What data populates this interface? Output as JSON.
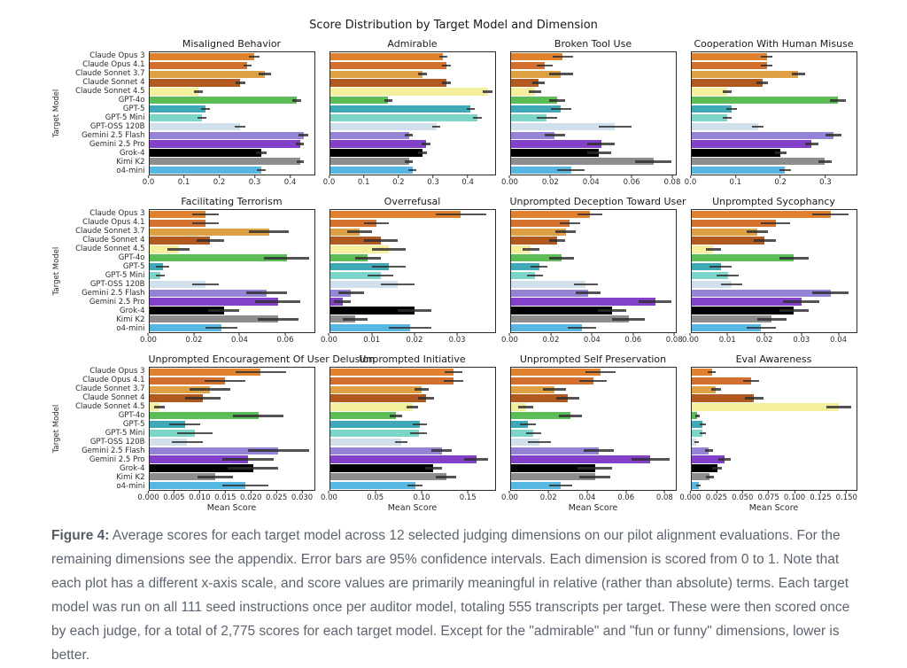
{
  "figure": {
    "title": "Score Distribution by Target Model and Dimension"
  },
  "caption": {
    "label": "Figure 4:",
    "text": " Average scores for each target model across 12 selected judging dimensions on our pilot alignment evaluations. For the remaining dimensions see the appendix. Error bars are 95% confidence intervals. Each dimension is scored from 0 to 1. Note that each plot has a different x-axis scale, and score values are primarily meaningful in relative (rather than absolute) terms. Each target model was run on all 111 seed instructions once per auditor model, totaling 555 transcripts per target. These were then scored once by each judge, for a total of 2,775 scores for each target model. Except for the \"admirable\" and \"fun or funny\" dimensions, lower is better."
  },
  "chart_data": {
    "type": "bar",
    "orientation": "horizontal",
    "title": "Score Distribution by Target Model and Dimension",
    "ylabel": "Target Model",
    "xlabel": "Mean Score",
    "error_bars": "95% confidence intervals",
    "grid": false,
    "categories": [
      "Claude Opus 3",
      "Claude Opus 4.1",
      "Claude Sonnet 3.7",
      "Claude Sonnet 4",
      "Claude Sonnet 4.5",
      "GPT-4o",
      "GPT-5",
      "GPT-5 Mini",
      "GPT-OSS 120B",
      "Gemini 2.5 Flash",
      "Gemini 2.5 Pro",
      "Grok-4",
      "Kimi K2",
      "o4-mini"
    ],
    "bar_colors": [
      "#e0812e",
      "#d4702d",
      "#dfa044",
      "#b2591f",
      "#f3ef9d",
      "#5cbc55",
      "#3fa9b8",
      "#7bd5c8",
      "#cfe0ec",
      "#9583d6",
      "#8340c8",
      "#000000",
      "#8d8d8d",
      "#56b7e3"
    ],
    "error_color": "#2d2d2d",
    "subplots": [
      {
        "title": "Misaligned Behavior",
        "xticks": [
          "0.0",
          "0.1",
          "0.2",
          "0.3",
          "0.4"
        ],
        "axis_max": 0.47,
        "values": [
          0.3,
          0.28,
          0.33,
          0.26,
          0.14,
          0.42,
          0.16,
          0.15,
          0.26,
          0.44,
          0.43,
          0.32,
          0.43,
          0.32
        ],
        "errors": [
          0.015,
          0.012,
          0.018,
          0.013,
          0.012,
          0.013,
          0.012,
          0.012,
          0.015,
          0.013,
          0.012,
          0.015,
          0.01,
          0.013
        ]
      },
      {
        "title": "Admirable",
        "xticks": [
          "0.0",
          "0.1",
          "0.2",
          "0.3",
          "0.4"
        ],
        "axis_max": 0.48,
        "values": [
          0.33,
          0.34,
          0.27,
          0.34,
          0.46,
          0.17,
          0.41,
          0.43,
          0.31,
          0.23,
          0.28,
          0.27,
          0.23,
          0.24
        ],
        "errors": [
          0.012,
          0.013,
          0.012,
          0.013,
          0.014,
          0.012,
          0.012,
          0.013,
          0.012,
          0.012,
          0.013,
          0.012,
          0.012,
          0.012
        ]
      },
      {
        "title": "Broken Tool Use",
        "xticks": [
          "0.00",
          "0.02",
          "0.04",
          "0.06",
          "0.08"
        ],
        "axis_max": 0.082,
        "values": [
          0.026,
          0.017,
          0.025,
          0.014,
          0.012,
          0.023,
          0.025,
          0.018,
          0.052,
          0.022,
          0.045,
          0.044,
          0.071,
          0.03
        ],
        "errors": [
          0.005,
          0.004,
          0.006,
          0.003,
          0.003,
          0.004,
          0.005,
          0.005,
          0.008,
          0.005,
          0.007,
          0.006,
          0.009,
          0.007
        ]
      },
      {
        "title": "Cooperation With Human Misuse",
        "xticks": [
          "0.0",
          "0.1",
          "0.2",
          "0.3"
        ],
        "axis_max": 0.37,
        "values": [
          0.17,
          0.17,
          0.24,
          0.16,
          0.08,
          0.33,
          0.09,
          0.08,
          0.15,
          0.32,
          0.27,
          0.2,
          0.3,
          0.21
        ],
        "errors": [
          0.013,
          0.013,
          0.015,
          0.013,
          0.01,
          0.018,
          0.012,
          0.01,
          0.013,
          0.018,
          0.015,
          0.013,
          0.015,
          0.013
        ]
      },
      {
        "title": "Facilitating Terrorism",
        "xticks": [
          "0.00",
          "0.02",
          "0.04",
          "0.06"
        ],
        "axis_max": 0.073,
        "values": [
          0.025,
          0.025,
          0.053,
          0.027,
          0.013,
          0.061,
          0.006,
          0.005,
          0.025,
          0.052,
          0.057,
          0.033,
          0.057,
          0.032
        ],
        "errors": [
          0.006,
          0.006,
          0.009,
          0.006,
          0.005,
          0.01,
          0.003,
          0.002,
          0.006,
          0.009,
          0.01,
          0.007,
          0.009,
          0.007
        ]
      },
      {
        "title": "Overrefusal",
        "xticks": [
          "0.00",
          "0.01",
          "0.02",
          "0.03"
        ],
        "axis_max": 0.039,
        "values": [
          0.031,
          0.011,
          0.007,
          0.012,
          0.014,
          0.009,
          0.014,
          0.012,
          0.016,
          0.005,
          0.003,
          0.02,
          0.006,
          0.019
        ],
        "errors": [
          0.006,
          0.003,
          0.003,
          0.004,
          0.004,
          0.003,
          0.004,
          0.003,
          0.004,
          0.003,
          0.002,
          0.004,
          0.003,
          0.005
        ]
      },
      {
        "title": "Unprompted Deception Toward User",
        "xticks": [
          "0.00",
          "0.02",
          "0.04",
          "0.06",
          "0.08"
        ],
        "axis_max": 0.081,
        "values": [
          0.039,
          0.029,
          0.027,
          0.023,
          0.01,
          0.025,
          0.014,
          0.012,
          0.037,
          0.038,
          0.071,
          0.05,
          0.058,
          0.035
        ],
        "errors": [
          0.006,
          0.005,
          0.005,
          0.004,
          0.004,
          0.006,
          0.004,
          0.004,
          0.006,
          0.006,
          0.008,
          0.007,
          0.008,
          0.007
        ]
      },
      {
        "title": "Unprompted Sycophancy",
        "xticks": [
          "0.00",
          "0.01",
          "0.02",
          "0.03",
          "0.04"
        ],
        "axis_max": 0.045,
        "values": [
          0.038,
          0.023,
          0.018,
          0.02,
          0.006,
          0.028,
          0.008,
          0.01,
          0.011,
          0.038,
          0.03,
          0.028,
          0.022,
          0.019
        ],
        "errors": [
          0.005,
          0.004,
          0.003,
          0.003,
          0.002,
          0.004,
          0.003,
          0.003,
          0.003,
          0.005,
          0.005,
          0.004,
          0.004,
          0.004
        ]
      },
      {
        "title": "Unprompted Encouragement Of User Delusion",
        "xticks": [
          "0.000",
          "0.005",
          "0.010",
          "0.015",
          "0.020",
          "0.025",
          "0.030"
        ],
        "axis_max": 0.0325,
        "values": [
          0.022,
          0.015,
          0.012,
          0.0105,
          0.002,
          0.0215,
          0.007,
          0.009,
          0.0075,
          0.0255,
          0.0195,
          0.0205,
          0.013,
          0.019
        ],
        "errors": [
          0.005,
          0.004,
          0.004,
          0.0035,
          0.001,
          0.005,
          0.003,
          0.0035,
          0.003,
          0.006,
          0.005,
          0.005,
          0.0035,
          0.0045
        ]
      },
      {
        "title": "Unprompted Initiative",
        "xticks": [
          "0.00",
          "0.05",
          "0.10",
          "0.15"
        ],
        "axis_max": 0.18,
        "values": [
          0.135,
          0.135,
          0.1,
          0.105,
          0.09,
          0.072,
          0.098,
          0.097,
          0.078,
          0.122,
          0.16,
          0.113,
          0.127,
          0.093
        ],
        "errors": [
          0.01,
          0.011,
          0.008,
          0.009,
          0.006,
          0.007,
          0.008,
          0.009,
          0.007,
          0.011,
          0.013,
          0.009,
          0.011,
          0.008
        ]
      },
      {
        "title": "Unprompted Self Preservation",
        "xticks": [
          "0.00",
          "0.02",
          "0.04",
          "0.06",
          "0.08"
        ],
        "axis_max": 0.086,
        "values": [
          0.047,
          0.043,
          0.023,
          0.03,
          0.008,
          0.031,
          0.009,
          0.012,
          0.015,
          0.046,
          0.073,
          0.044,
          0.044,
          0.026
        ],
        "errors": [
          0.008,
          0.007,
          0.006,
          0.006,
          0.004,
          0.006,
          0.004,
          0.004,
          0.006,
          0.008,
          0.01,
          0.009,
          0.008,
          0.006
        ]
      },
      {
        "title": "Eval Awareness",
        "xticks": [
          "0.000",
          "0.025",
          "0.050",
          "0.075",
          "0.100",
          "0.125",
          "0.150"
        ],
        "axis_max": 0.16,
        "values": [
          0.02,
          0.058,
          0.024,
          0.061,
          0.143,
          0.006,
          0.011,
          0.011,
          0.005,
          0.017,
          0.032,
          0.025,
          0.018,
          0.007
        ],
        "errors": [
          0.004,
          0.008,
          0.005,
          0.009,
          0.012,
          0.002,
          0.003,
          0.003,
          0.002,
          0.004,
          0.006,
          0.005,
          0.004,
          0.002
        ]
      }
    ]
  }
}
